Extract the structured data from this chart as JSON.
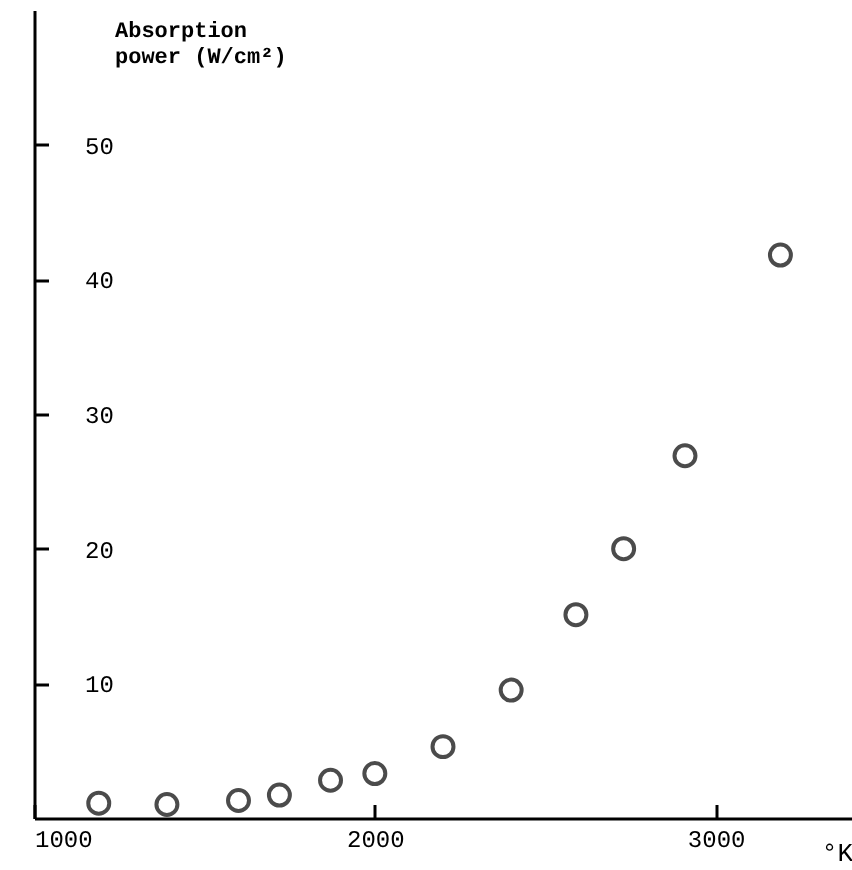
{
  "chart_data": {
    "type": "scatter",
    "xlabel": "°K",
    "ylabel": "Absorption\npower (W/cm²)",
    "x": [
      1190,
      1390,
      1600,
      1720,
      1870,
      2000,
      2200,
      2400,
      2590,
      2730,
      2910,
      3190
    ],
    "series": [
      {
        "color": "#000000",
        "values": [
          1.1,
          1.0,
          1.3,
          1.7,
          2.8,
          3.3,
          5.3,
          9.5,
          15.1,
          20.0,
          26.9,
          41.8
        ]
      }
    ],
    "xlim": [
      1000,
      3400
    ],
    "xticks": [
      1000,
      2000,
      3000
    ],
    "ylim": [
      0,
      60
    ],
    "yticks": [
      10,
      20,
      30,
      40,
      50
    ],
    "marker": "circle",
    "grid": false
  }
}
